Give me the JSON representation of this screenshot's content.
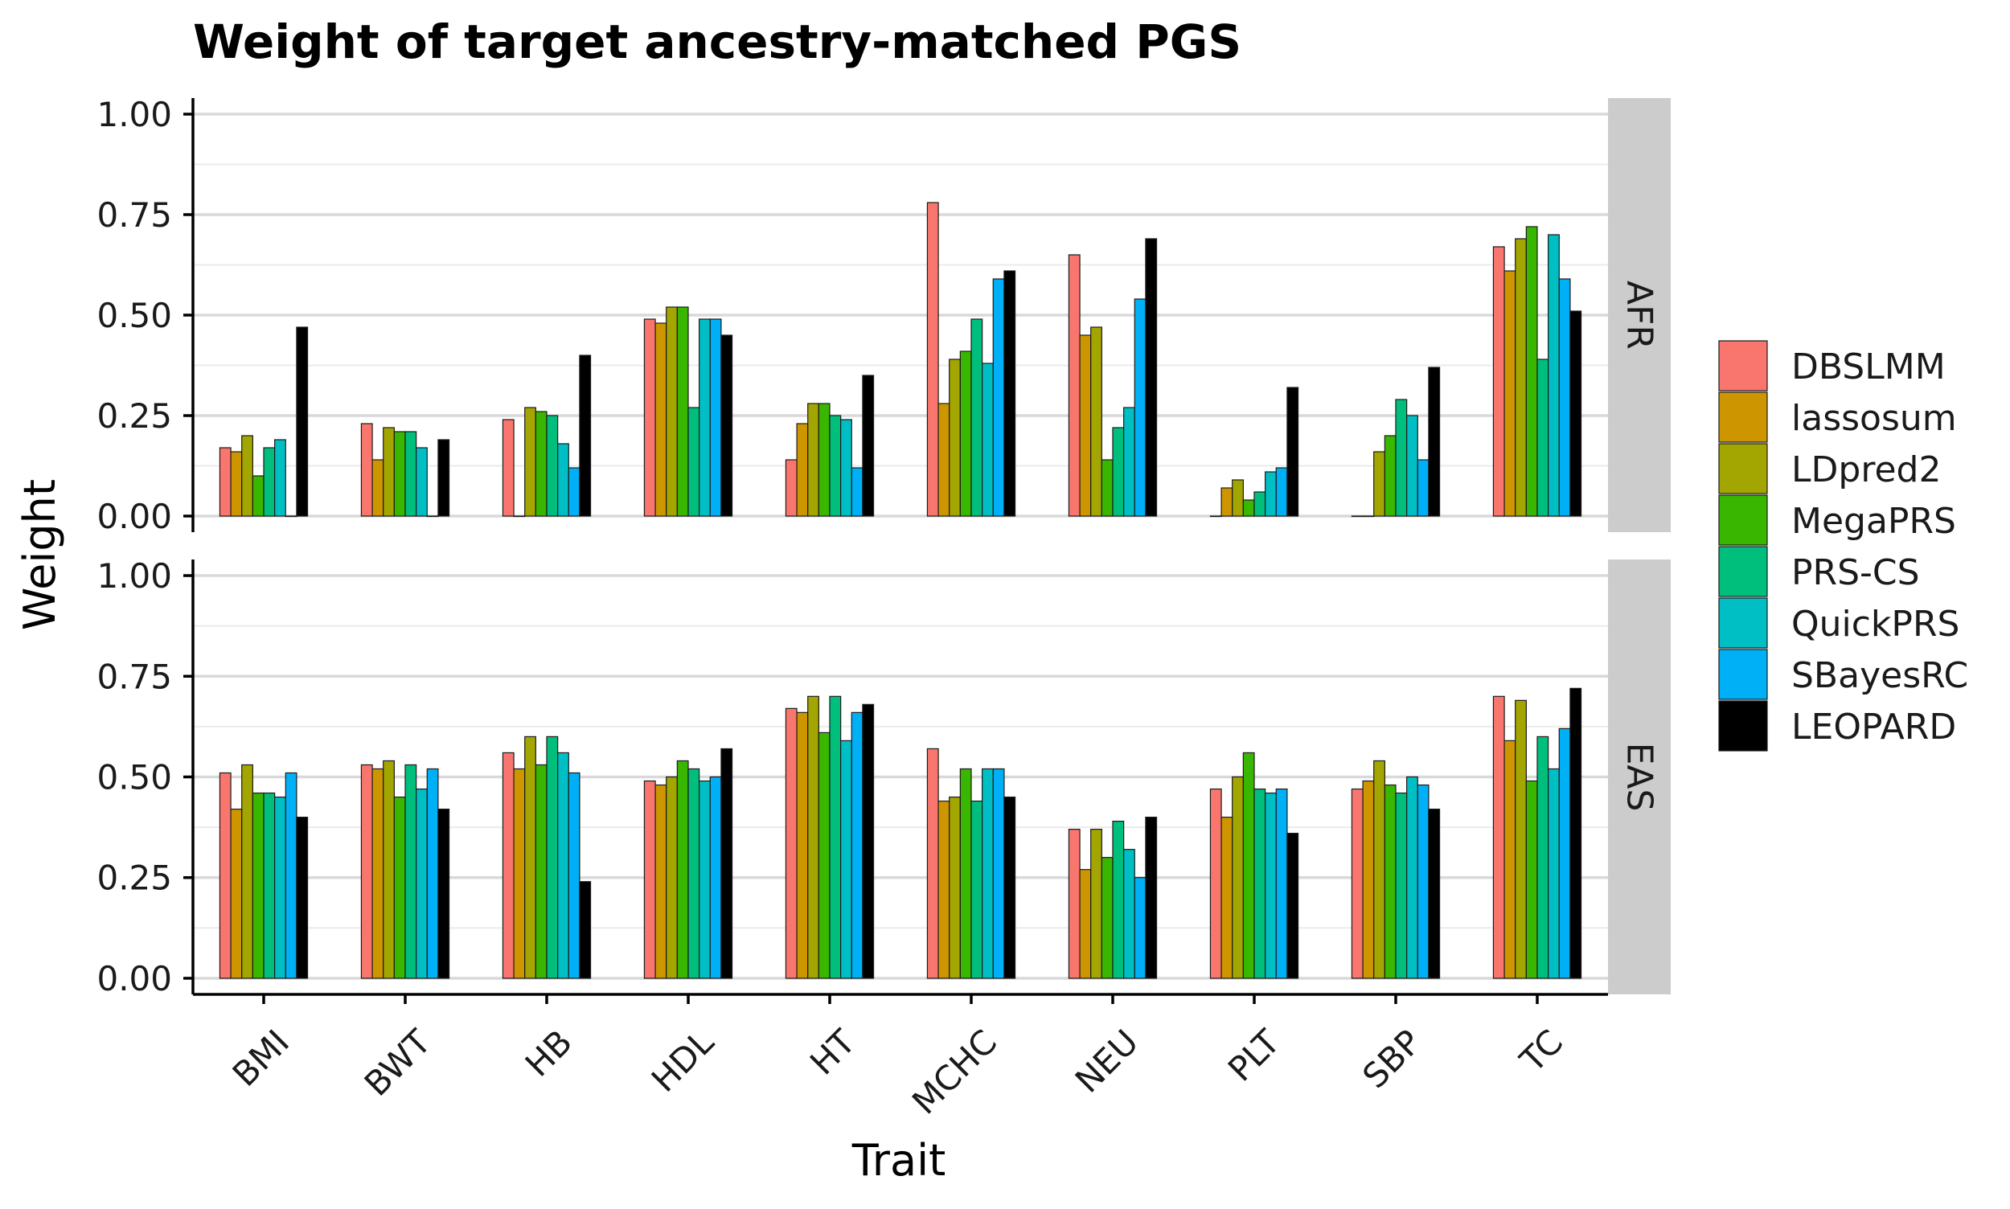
{
  "chart_data": {
    "type": "bar",
    "title": "Weight of target ancestry-matched PGS",
    "xlabel": "Trait",
    "ylabel": "Weight",
    "ylim": [
      -0.04,
      1.04
    ],
    "yticks": [
      0.0,
      0.25,
      0.5,
      0.75,
      1.0
    ],
    "ytick_labels": [
      "0.00",
      "0.25",
      "0.50",
      "0.75",
      "1.00"
    ],
    "grid": true,
    "legend_position": "right",
    "categories": [
      "BMI",
      "BWT",
      "HB",
      "HDL",
      "HT",
      "MCHC",
      "NEU",
      "PLT",
      "SBP",
      "TC"
    ],
    "legend": [
      {
        "name": "DBSLMM",
        "color": "#F8766D"
      },
      {
        "name": "lassosum",
        "color": "#CD9600"
      },
      {
        "name": "LDpred2",
        "color": "#A3A500"
      },
      {
        "name": "MegaPRS",
        "color": "#39B600"
      },
      {
        "name": "PRS-CS",
        "color": "#00BF7D"
      },
      {
        "name": "QuickPRS",
        "color": "#00BFC4"
      },
      {
        "name": "SBayesRC",
        "color": "#00B0F6"
      },
      {
        "name": "LEOPARD",
        "color": "#000000"
      }
    ],
    "panels": [
      {
        "label": "AFR",
        "series": [
          {
            "name": "DBSLMM",
            "values": [
              0.17,
              0.23,
              0.24,
              0.49,
              0.14,
              0.78,
              0.65,
              0.0,
              0.0,
              0.67
            ]
          },
          {
            "name": "lassosum",
            "values": [
              0.16,
              0.14,
              0.0,
              0.48,
              0.23,
              0.28,
              0.45,
              0.07,
              0.0,
              0.61
            ]
          },
          {
            "name": "LDpred2",
            "values": [
              0.2,
              0.22,
              0.27,
              0.52,
              0.28,
              0.39,
              0.47,
              0.09,
              0.16,
              0.69
            ]
          },
          {
            "name": "MegaPRS",
            "values": [
              0.1,
              0.21,
              0.26,
              0.52,
              0.28,
              0.41,
              0.14,
              0.04,
              0.2,
              0.72
            ]
          },
          {
            "name": "PRS-CS",
            "values": [
              0.17,
              0.21,
              0.25,
              0.27,
              0.25,
              0.49,
              0.22,
              0.06,
              0.29,
              0.39
            ]
          },
          {
            "name": "QuickPRS",
            "values": [
              0.19,
              0.17,
              0.18,
              0.49,
              0.24,
              0.38,
              0.27,
              0.11,
              0.25,
              0.7
            ]
          },
          {
            "name": "SBayesRC",
            "values": [
              0.0,
              0.0,
              0.12,
              0.49,
              0.12,
              0.59,
              0.54,
              0.12,
              0.14,
              0.59
            ]
          },
          {
            "name": "LEOPARD",
            "values": [
              0.47,
              0.19,
              0.4,
              0.45,
              0.35,
              0.61,
              0.69,
              0.32,
              0.37,
              0.51
            ]
          }
        ]
      },
      {
        "label": "EAS",
        "series": [
          {
            "name": "DBSLMM",
            "values": [
              0.51,
              0.53,
              0.56,
              0.49,
              0.67,
              0.57,
              0.37,
              0.47,
              0.47,
              0.7
            ]
          },
          {
            "name": "lassosum",
            "values": [
              0.42,
              0.52,
              0.52,
              0.48,
              0.66,
              0.44,
              0.27,
              0.4,
              0.49,
              0.59
            ]
          },
          {
            "name": "LDpred2",
            "values": [
              0.53,
              0.54,
              0.6,
              0.5,
              0.7,
              0.45,
              0.37,
              0.5,
              0.54,
              0.69
            ]
          },
          {
            "name": "MegaPRS",
            "values": [
              0.46,
              0.45,
              0.53,
              0.54,
              0.61,
              0.52,
              0.3,
              0.56,
              0.48,
              0.49
            ]
          },
          {
            "name": "PRS-CS",
            "values": [
              0.46,
              0.53,
              0.6,
              0.52,
              0.7,
              0.44,
              0.39,
              0.47,
              0.46,
              0.6
            ]
          },
          {
            "name": "QuickPRS",
            "values": [
              0.45,
              0.47,
              0.56,
              0.49,
              0.59,
              0.52,
              0.32,
              0.46,
              0.5,
              0.52
            ]
          },
          {
            "name": "SBayesRC",
            "values": [
              0.51,
              0.52,
              0.51,
              0.5,
              0.66,
              0.52,
              0.25,
              0.47,
              0.48,
              0.62
            ]
          },
          {
            "name": "LEOPARD",
            "values": [
              0.4,
              0.42,
              0.24,
              0.57,
              0.68,
              0.45,
              0.4,
              0.36,
              0.42,
              0.72
            ]
          }
        ]
      }
    ]
  }
}
